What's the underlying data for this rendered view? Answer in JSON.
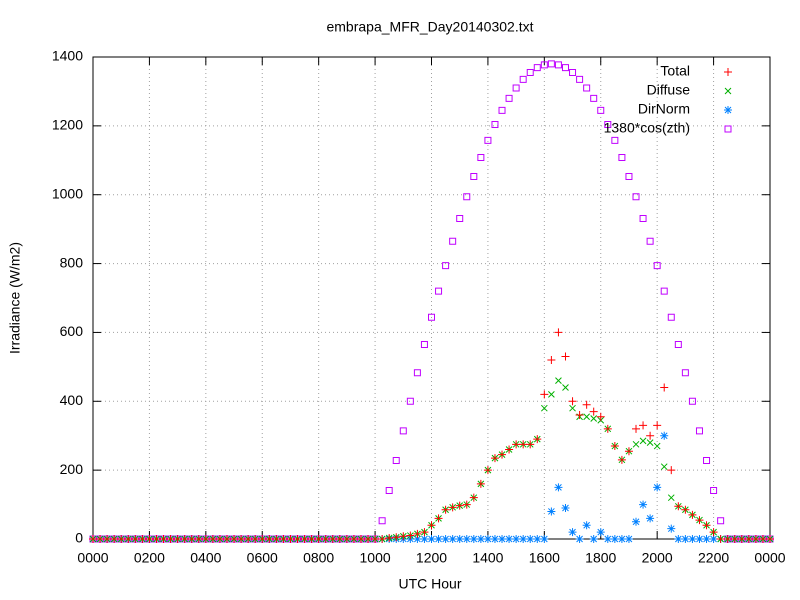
{
  "chart_data": {
    "type": "scatter",
    "title": "embrapa_MFR_Day20140302.txt",
    "xlabel": "UTC Hour",
    "ylabel": "Irradiance (W/m2)",
    "xlim": [
      0,
      24
    ],
    "ylim": [
      0,
      1400
    ],
    "xticks": [
      {
        "value": 0,
        "label": "0000"
      },
      {
        "value": 2,
        "label": "0200"
      },
      {
        "value": 4,
        "label": "0400"
      },
      {
        "value": 6,
        "label": "0600"
      },
      {
        "value": 8,
        "label": "0800"
      },
      {
        "value": 10,
        "label": "1000"
      },
      {
        "value": 12,
        "label": "1200"
      },
      {
        "value": 14,
        "label": "1400"
      },
      {
        "value": 16,
        "label": "1600"
      },
      {
        "value": 18,
        "label": "1800"
      },
      {
        "value": 20,
        "label": "2000"
      },
      {
        "value": 22,
        "label": "2200"
      },
      {
        "value": 24,
        "label": "0000"
      }
    ],
    "yticks": [
      0,
      200,
      400,
      600,
      800,
      1000,
      1200,
      1400
    ],
    "grid": true,
    "legend": "top-right",
    "x": [
      0,
      0.25,
      0.5,
      0.75,
      1,
      1.25,
      1.5,
      1.75,
      2,
      2.25,
      2.5,
      2.75,
      3,
      3.25,
      3.5,
      3.75,
      4,
      4.25,
      4.5,
      4.75,
      5,
      5.25,
      5.5,
      5.75,
      6,
      6.25,
      6.5,
      6.75,
      7,
      7.25,
      7.5,
      7.75,
      8,
      8.25,
      8.5,
      8.75,
      9,
      9.25,
      9.5,
      9.75,
      10,
      10.25,
      10.5,
      10.75,
      11,
      11.25,
      11.5,
      11.75,
      12,
      12.25,
      12.5,
      12.75,
      13,
      13.25,
      13.5,
      13.75,
      14,
      14.25,
      14.5,
      14.75,
      15,
      15.25,
      15.5,
      15.75,
      16,
      16.25,
      16.5,
      16.75,
      17,
      17.25,
      17.5,
      17.75,
      18,
      18.25,
      18.5,
      18.75,
      19,
      19.25,
      19.5,
      19.75,
      20,
      20.25,
      20.5,
      20.75,
      21,
      21.25,
      21.5,
      21.75,
      22,
      22.25,
      22.5,
      22.75,
      23,
      23.25,
      23.5,
      23.75,
      24
    ],
    "series": [
      {
        "name": "Total",
        "color": "#ff0000",
        "marker": "plus",
        "values": [
          0,
          0,
          0,
          0,
          0,
          0,
          0,
          0,
          0,
          0,
          0,
          0,
          0,
          0,
          0,
          0,
          0,
          0,
          0,
          0,
          0,
          0,
          0,
          0,
          0,
          0,
          0,
          0,
          0,
          0,
          0,
          0,
          0,
          0,
          0,
          0,
          0,
          0,
          0,
          0,
          0,
          0,
          3,
          5,
          8,
          10,
          15,
          20,
          40,
          60,
          85,
          92,
          97,
          100,
          120,
          160,
          200,
          235,
          245,
          260,
          275,
          275,
          275,
          290,
          420,
          520,
          600,
          530,
          400,
          360,
          390,
          370,
          355,
          320,
          270,
          230,
          255,
          320,
          330,
          300,
          330,
          440,
          200,
          95,
          85,
          70,
          55,
          40,
          20,
          0,
          0,
          0,
          0,
          0,
          0,
          0,
          0
        ]
      },
      {
        "name": "Diffuse",
        "color": "#00b000",
        "marker": "cross",
        "values": [
          0,
          0,
          0,
          0,
          0,
          0,
          0,
          0,
          0,
          0,
          0,
          0,
          0,
          0,
          0,
          0,
          0,
          0,
          0,
          0,
          0,
          0,
          0,
          0,
          0,
          0,
          0,
          0,
          0,
          0,
          0,
          0,
          0,
          0,
          0,
          0,
          0,
          0,
          0,
          0,
          0,
          0,
          3,
          5,
          8,
          10,
          15,
          20,
          40,
          60,
          85,
          92,
          97,
          100,
          120,
          160,
          200,
          235,
          245,
          260,
          275,
          275,
          275,
          290,
          380,
          420,
          460,
          440,
          380,
          355,
          355,
          350,
          345,
          320,
          270,
          230,
          255,
          275,
          285,
          280,
          270,
          210,
          120,
          95,
          85,
          70,
          55,
          40,
          20,
          0,
          0,
          0,
          0,
          0,
          0,
          0,
          0
        ]
      },
      {
        "name": "DirNorm",
        "color": "#0080ff",
        "marker": "star",
        "values": [
          0,
          0,
          0,
          0,
          0,
          0,
          0,
          0,
          0,
          0,
          0,
          0,
          0,
          0,
          0,
          0,
          0,
          0,
          0,
          0,
          0,
          0,
          0,
          0,
          0,
          0,
          0,
          0,
          0,
          0,
          0,
          0,
          0,
          0,
          0,
          0,
          0,
          0,
          0,
          0,
          0,
          0,
          0,
          0,
          0,
          0,
          0,
          0,
          0,
          0,
          0,
          0,
          0,
          0,
          0,
          0,
          0,
          0,
          0,
          0,
          0,
          0,
          0,
          0,
          0,
          80,
          150,
          90,
          20,
          0,
          40,
          0,
          20,
          0,
          0,
          0,
          0,
          50,
          100,
          60,
          150,
          300,
          30,
          0,
          0,
          0,
          0,
          0,
          0,
          0,
          0,
          0,
          0,
          0,
          0,
          0,
          0
        ]
      },
      {
        "name": "1380*cos(zth)",
        "color": "#c000ff",
        "marker": "square",
        "values": [
          0,
          0,
          0,
          0,
          0,
          0,
          0,
          0,
          0,
          0,
          0,
          0,
          0,
          0,
          0,
          0,
          0,
          0,
          0,
          0,
          0,
          0,
          0,
          0,
          0,
          0,
          0,
          0,
          0,
          0,
          0,
          0,
          0,
          0,
          0,
          0,
          0,
          0,
          0,
          0,
          0,
          53,
          141,
          228,
          314,
          400,
          483,
          565,
          644,
          720,
          794,
          865,
          931,
          994,
          1053,
          1108,
          1158,
          1204,
          1245,
          1280,
          1310,
          1335,
          1355,
          1369,
          1377,
          1380,
          1377,
          1369,
          1355,
          1335,
          1310,
          1280,
          1245,
          1204,
          1158,
          1108,
          1053,
          994,
          931,
          865,
          794,
          720,
          644,
          565,
          483,
          400,
          314,
          228,
          141,
          53,
          0,
          0,
          0,
          0,
          0,
          0,
          0
        ]
      }
    ]
  }
}
